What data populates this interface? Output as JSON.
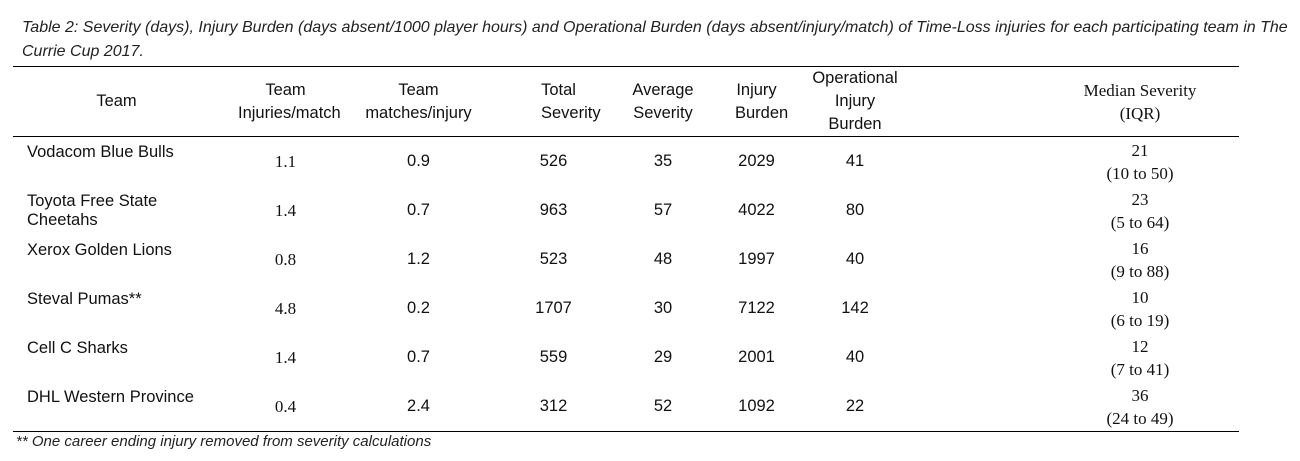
{
  "caption": "Table 2: Severity (days), Injury Burden (days absent/1000 player hours) and Operational Burden (days absent/injury/match) of Time-Loss injuries for each participating team in The Currie Cup 2017.",
  "headers": [
    "Team",
    "Team Injuries/match",
    "Team matches/injury",
    "Total Severity",
    "Average Severity",
    "Injury Burden",
    "Operational Injury Burden",
    "Median Severity (IQR)"
  ],
  "rows": [
    {
      "team": "Vodacom Blue Bulls",
      "inj_per_match": "1.1",
      "matches_per_inj": "0.9",
      "total_sev": "526",
      "avg_sev": "35",
      "burden": "2029",
      "op_burden": "41",
      "median": "21",
      "iqr": "(10 to 50)"
    },
    {
      "team": "Toyota Free State Cheetahs",
      "inj_per_match": "1.4",
      "matches_per_inj": "0.7",
      "total_sev": "963",
      "avg_sev": "57",
      "burden": "4022",
      "op_burden": "80",
      "median": "23",
      "iqr": "(5 to 64)"
    },
    {
      "team": "Xerox Golden Lions",
      "inj_per_match": "0.8",
      "matches_per_inj": "1.2",
      "total_sev": "523",
      "avg_sev": "48",
      "burden": "1997",
      "op_burden": "40",
      "median": "16",
      "iqr": "(9 to 88)"
    },
    {
      "team": "Steval Pumas**",
      "inj_per_match": "4.8",
      "matches_per_inj": "0.2",
      "total_sev": "1707",
      "avg_sev": "30",
      "burden": "7122",
      "op_burden": "142",
      "median": "10",
      "iqr": "(6 to 19)"
    },
    {
      "team": "Cell C Sharks",
      "inj_per_match": "1.4",
      "matches_per_inj": "0.7",
      "total_sev": "559",
      "avg_sev": "29",
      "burden": "2001",
      "op_burden": "40",
      "median": "12",
      "iqr": "(7 to 41)"
    },
    {
      "team": "DHL Western Province",
      "inj_per_match": "0.4",
      "matches_per_inj": "2.4",
      "total_sev": "312",
      "avg_sev": "52",
      "burden": "1092",
      "op_burden": "22",
      "median": "36",
      "iqr": "(24 to 49)"
    }
  ],
  "footnote": "** One career ending injury removed from severity calculations"
}
